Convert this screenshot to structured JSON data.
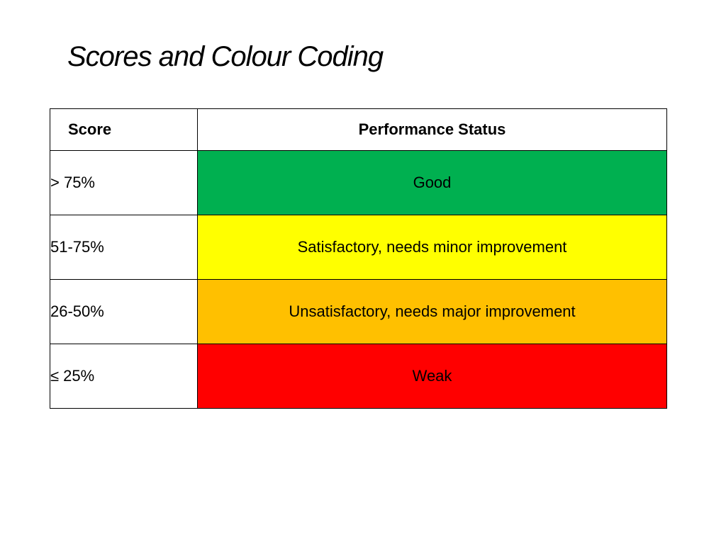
{
  "title": "Scores and Colour Coding",
  "table": {
    "headers": {
      "score": "Score",
      "status": "Performance Status"
    },
    "rows": [
      {
        "score": "> 75%",
        "status": "Good",
        "color": "#00B050"
      },
      {
        "score": "51-75%",
        "status": "Satisfactory, needs minor improvement",
        "color": "#FFFF00"
      },
      {
        "score": "26-50%",
        "status": "Unsatisfactory, needs major improvement",
        "color": "#FFC000"
      },
      {
        "score": "≤ 25%",
        "status": "Weak",
        "color": "#FF0000"
      }
    ]
  }
}
